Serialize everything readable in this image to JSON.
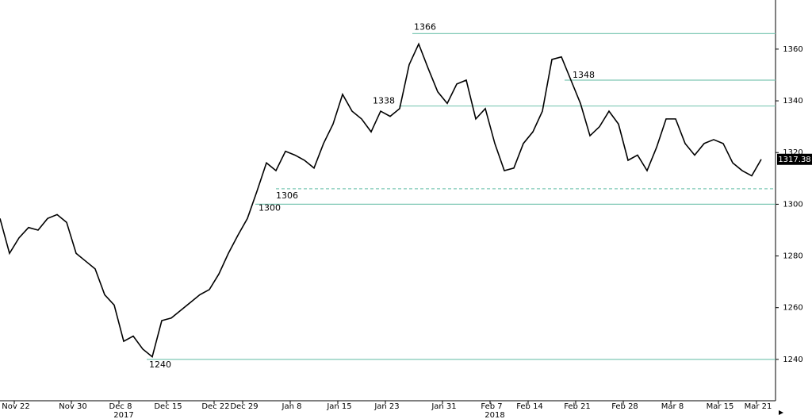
{
  "chart_data": {
    "type": "line",
    "categories": [
      null,
      null,
      "Nov 22",
      null,
      null,
      null,
      null,
      null,
      "Nov 30",
      null,
      null,
      null,
      null,
      "Dec 8",
      null,
      null,
      null,
      null,
      "Dec 15",
      null,
      null,
      null,
      null,
      "Dec 22",
      null,
      null,
      "Dec 29",
      null,
      null,
      null,
      null,
      "Jan 8",
      null,
      null,
      null,
      null,
      "Jan 15",
      null,
      null,
      null,
      null,
      "Jan 23",
      null,
      null,
      null,
      null,
      null,
      "Jan 31",
      null,
      null,
      null,
      null,
      "Feb 7",
      null,
      null,
      null,
      "Feb 14",
      null,
      null,
      null,
      null,
      "Feb 21",
      null,
      null,
      null,
      null,
      "Feb 28",
      null,
      null,
      null,
      null,
      "Mar 8",
      null,
      null,
      null,
      null,
      "Mar 15",
      null,
      null,
      null,
      "Mar 21"
    ],
    "category_years": [
      null,
      null,
      null,
      null,
      null,
      null,
      null,
      null,
      null,
      null,
      null,
      null,
      null,
      "2017",
      null,
      null,
      null,
      null,
      null,
      null,
      null,
      null,
      null,
      null,
      null,
      null,
      null,
      null,
      null,
      null,
      null,
      null,
      null,
      null,
      null,
      null,
      null,
      null,
      null,
      null,
      null,
      null,
      null,
      null,
      null,
      null,
      null,
      null,
      null,
      null,
      null,
      null,
      "2018",
      null,
      null,
      null,
      null,
      null,
      null,
      null,
      null,
      null,
      null,
      null,
      null,
      null,
      null,
      null,
      null,
      null,
      null,
      null,
      null,
      null,
      null,
      null,
      null,
      null,
      null,
      null,
      null
    ],
    "series": [
      {
        "color": "#000000",
        "values": [
          1294.5,
          1281,
          1287,
          1291,
          1290,
          1294.5,
          1296,
          1293,
          1281,
          1278,
          1275,
          1265,
          1261,
          1247,
          1249,
          1244,
          1241,
          1255,
          1256,
          1259,
          1262,
          1265,
          1267,
          1273,
          1281,
          1288,
          1294.5,
          1305,
          1316,
          1313,
          1320.5,
          1319,
          1317,
          1314,
          1323.5,
          1331,
          1342.5,
          1336,
          1333,
          1328,
          1336,
          1334,
          1337,
          1354,
          1362,
          1352.5,
          1343.5,
          1339,
          1346.5,
          1348,
          1333,
          1337,
          1323.5,
          1313,
          1314,
          1323.5,
          1328,
          1336,
          1356,
          1357,
          1348,
          1339,
          1326.5,
          1330,
          1336,
          1331,
          1317,
          1319,
          1313,
          1322,
          1333,
          1333,
          1323.5,
          1319,
          1323.5,
          1325,
          1323.5,
          1316,
          1313,
          1311,
          1317.38
        ]
      }
    ],
    "levels": [
      1366,
      1348,
      1338,
      1306,
      1300,
      1240
    ],
    "level_styles": [
      "solid",
      "solid",
      "solid",
      "dashed",
      "solid",
      "solid"
    ],
    "level_color": "#7fc8b5",
    "ylim": [
      1224,
      1379
    ],
    "yticks": [
      1240,
      1260,
      1280,
      1300,
      1320,
      1340,
      1360
    ]
  }
}
